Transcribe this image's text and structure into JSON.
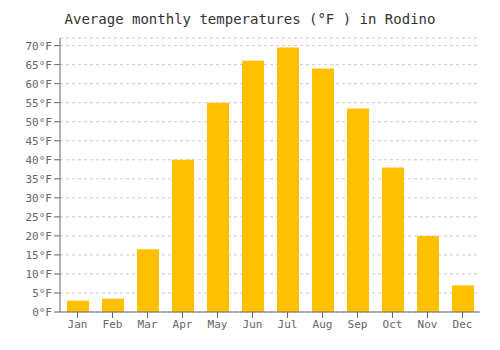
{
  "chart_data": {
    "type": "bar",
    "title": "Average monthly temperatures (°F ) in Rodino",
    "categories": [
      "Jan",
      "Feb",
      "Mar",
      "Apr",
      "May",
      "Jun",
      "Jul",
      "Aug",
      "Sep",
      "Oct",
      "Nov",
      "Dec"
    ],
    "values": [
      3,
      3.5,
      16.5,
      40,
      55,
      66,
      69.5,
      64,
      53.5,
      38,
      20,
      7
    ],
    "color": "#FFC000",
    "ylim": [
      0,
      72
    ],
    "yticks": [
      {
        "value": 0,
        "label": "0°F"
      },
      {
        "value": 5,
        "label": "5°F"
      },
      {
        "value": 10,
        "label": "10°F"
      },
      {
        "value": 15,
        "label": "15°F"
      },
      {
        "value": 20,
        "label": "20°F"
      },
      {
        "value": 25,
        "label": "25°F"
      },
      {
        "value": 30,
        "label": "30°F"
      },
      {
        "value": 35,
        "label": "35°F"
      },
      {
        "value": 40,
        "label": "40°F"
      },
      {
        "value": 45,
        "label": "45°F"
      },
      {
        "value": 50,
        "label": "50°F"
      },
      {
        "value": 55,
        "label": "55°F"
      },
      {
        "value": 60,
        "label": "60°F"
      },
      {
        "value": 65,
        "label": "65°F"
      },
      {
        "value": 70,
        "label": "70°F"
      }
    ],
    "grid": true
  }
}
